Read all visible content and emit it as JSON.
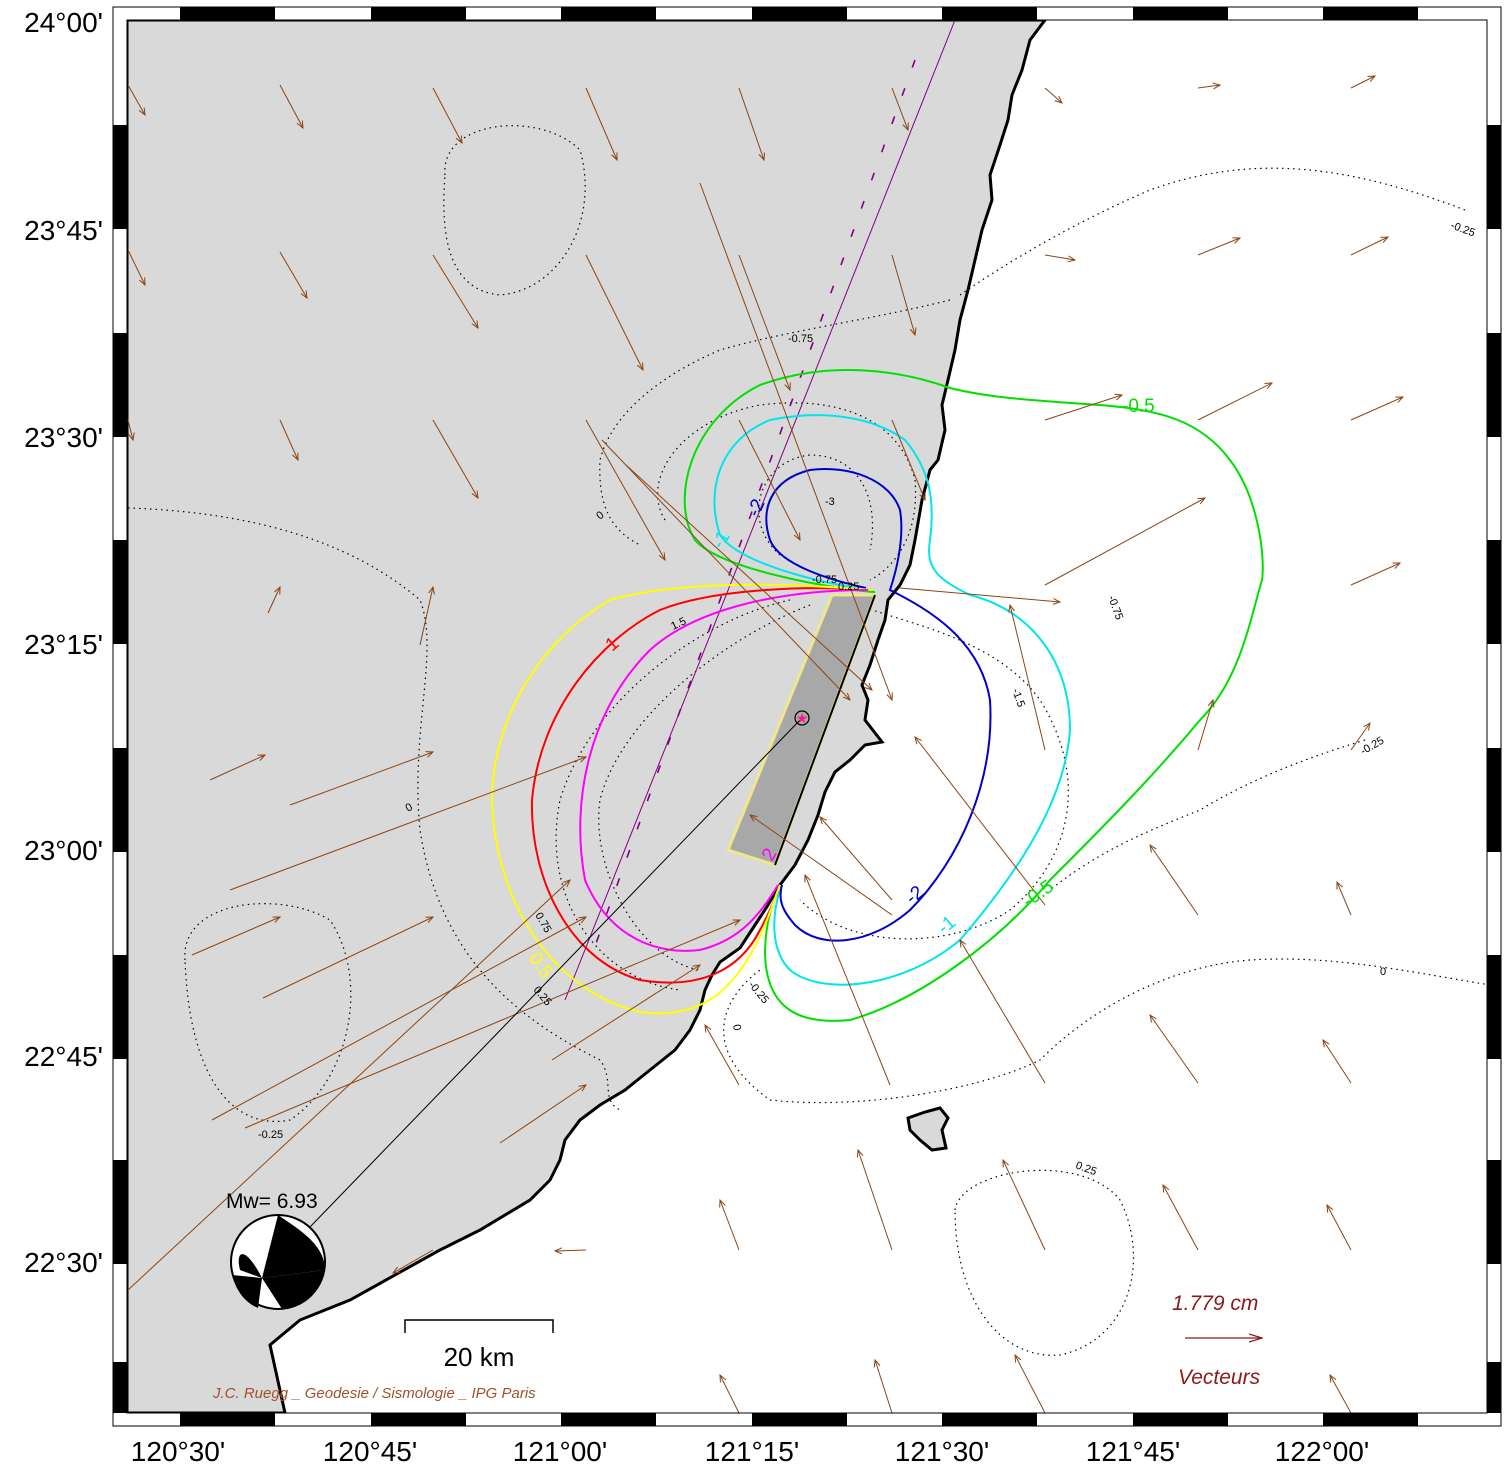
{
  "map": {
    "lat_labels": [
      "24°00'",
      "23°45'",
      "23°30'",
      "23°15'",
      "23°00'",
      "22°45'",
      "22°30'"
    ],
    "lon_labels": [
      "120°30'",
      "120°45'",
      "121°00'",
      "121°15'",
      "121°30'",
      "121°45'",
      "122°00'"
    ],
    "land_color": "#d9d9d9",
    "vector_color": "#8b4513"
  },
  "contours": {
    "dotted_labels": [
      "-0.25",
      "0",
      "-3",
      "-0.75",
      "0.25",
      "-0.75",
      "1.5",
      "-1.5",
      "-0.75",
      "-0.25",
      "0",
      "0.75",
      "0.25",
      "-0.25",
      "0",
      "-0.25",
      "0.25",
      "0"
    ],
    "main": [
      {
        "label": "-0.5",
        "color": "#00e000"
      },
      {
        "label": "-1",
        "color": "#00e5ee"
      },
      {
        "label": "-2",
        "color": "#0000cc"
      },
      {
        "label": "1",
        "color": "#ff0000"
      },
      {
        "label": "0.5",
        "color": "#ffff00"
      },
      {
        "label": "2",
        "color": "#ff00ff"
      }
    ]
  },
  "mechanism": {
    "magnitude_text": "Mw= 6.93"
  },
  "scale_bar": {
    "label": "20 km"
  },
  "vector_legend": {
    "value": "1.779  cm",
    "title": "Vecteurs"
  },
  "credit": "J.C. Ruegg _ Geodesie / Sismologie _ IPG Paris"
}
